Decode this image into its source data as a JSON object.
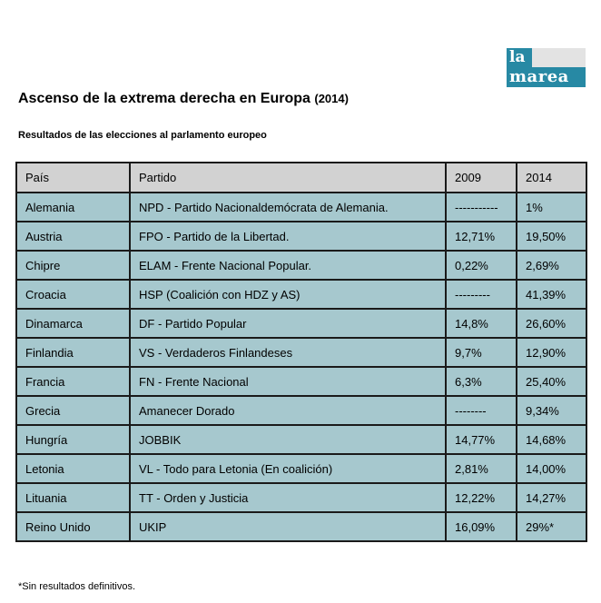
{
  "logo": {
    "line1": "la",
    "line2": "marea"
  },
  "title": {
    "main": "Ascenso de la extrema derecha en Europa",
    "year": "(2014)"
  },
  "subtitle": "Resultados de las elecciones al parlamento europeo",
  "footnote": "*Sin resultados definitivos.",
  "colors": {
    "logo_teal": "#2789A4",
    "logo_gray": "#E3E3E3",
    "header_bg": "#D2D2D2",
    "row_bg": "#A6C8CE",
    "border": "#1A1A1A"
  },
  "chart_data": {
    "type": "table",
    "title": "Ascenso de la extrema derecha en Europa (2014)",
    "subtitle": "Resultados de las elecciones al parlamento europeo",
    "columns": [
      "País",
      "Partido",
      "2009",
      "2014"
    ],
    "rows": [
      {
        "country": "Alemania",
        "party": "NPD - Partido Nacionaldemócrata de Alemania.",
        "y2009": "-----------",
        "y2014": "1%"
      },
      {
        "country": "Austria",
        "party": "FPO - Partido de la Libertad.",
        "y2009": "12,71%",
        "y2014": "19,50%"
      },
      {
        "country": "Chipre",
        "party": "ELAM - Frente Nacional Popular.",
        "y2009": "0,22%",
        "y2014": "2,69%"
      },
      {
        "country": "Croacia",
        "party": "HSP (Coalición con HDZ y AS)",
        "y2009": "---------",
        "y2014": "41,39%"
      },
      {
        "country": "Dinamarca",
        "party": "DF - Partido Popular",
        "y2009": "14,8%",
        "y2014": "26,60%"
      },
      {
        "country": "Finlandia",
        "party": "VS - Verdaderos Finlandeses",
        "y2009": "9,7%",
        "y2014": "12,90%"
      },
      {
        "country": "Francia",
        "party": "FN - Frente Nacional",
        "y2009": "6,3%",
        "y2014": "25,40%"
      },
      {
        "country": "Grecia",
        "party": "Amanecer Dorado",
        "y2009": "--------",
        "y2014": "9,34%"
      },
      {
        "country": "Hungría",
        "party": "JOBBIK",
        "y2009": "14,77%",
        "y2014": "14,68%"
      },
      {
        "country": "Letonia",
        "party": "VL - Todo para Letonia (En coalición)",
        "y2009": "2,81%",
        "y2014": "14,00%"
      },
      {
        "country": "Lituania",
        "party": "TT - Orden y Justicia",
        "y2009": "12,22%",
        "y2014": "14,27%"
      },
      {
        "country": "Reino Unido",
        "party": "UKIP",
        "y2009": "16,09%",
        "y2014": "29%*"
      }
    ],
    "footnote": "*Sin resultados definitivos.",
    "layout_hints": {
      "header_row_shaded": true,
      "body_rows_shaded_teal": true,
      "grid": true
    }
  }
}
